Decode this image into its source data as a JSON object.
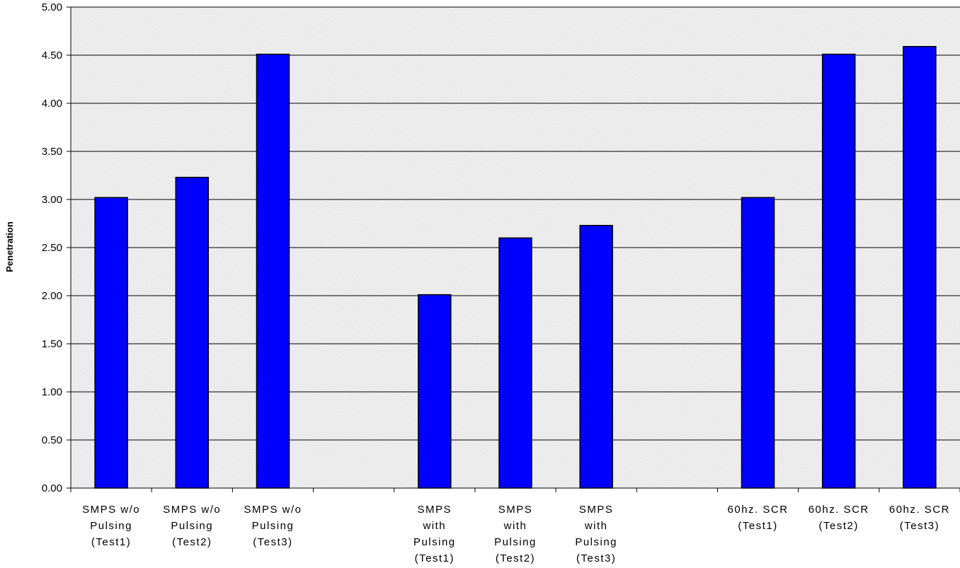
{
  "chart_data": {
    "type": "bar",
    "title": "",
    "xlabel": "",
    "ylabel": "Penetration",
    "ylim": [
      0,
      5
    ],
    "yticks": [
      "0.00",
      "0.50",
      "1.00",
      "1.50",
      "2.00",
      "2.50",
      "3.00",
      "3.50",
      "4.00",
      "4.50",
      "5.00"
    ],
    "grid": true,
    "bar_color": "#0000ff",
    "categories": [
      [
        "SMPS w/o",
        "Pulsing",
        "(Test1)"
      ],
      [
        "SMPS w/o",
        "Pulsing",
        "(Test2)"
      ],
      [
        "SMPS w/o",
        "Pulsing",
        "(Test3)"
      ],
      [],
      [
        "SMPS",
        "with",
        "Pulsing",
        "(Test1)"
      ],
      [
        "SMPS",
        "with",
        "Pulsing",
        "(Test2)"
      ],
      [
        "SMPS",
        "with",
        "Pulsing",
        "(Test3)"
      ],
      [],
      [
        "60hz. SCR",
        "(Test1)"
      ],
      [
        "60hz. SCR",
        "(Test2)"
      ],
      [
        "60hz. SCR",
        "(Test3)"
      ]
    ],
    "values": [
      3.02,
      3.23,
      4.51,
      null,
      2.01,
      2.6,
      2.73,
      null,
      3.02,
      4.51,
      4.59
    ]
  }
}
